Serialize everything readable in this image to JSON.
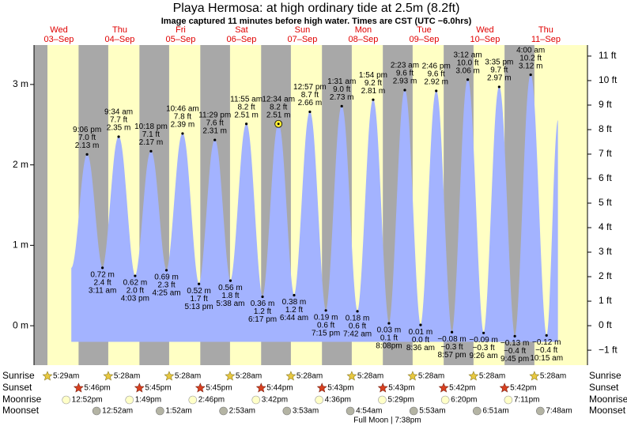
{
  "chart_data": {
    "type": "tide",
    "title": "Playa Hermosa: at high  ordinary tide at 2.5m (8.2ft)",
    "subtitle": "Image captured 11 minutes before high water. Times are CST (UTC −6.0hrs)",
    "days": [
      {
        "name": "Wed",
        "date": "03–Sep"
      },
      {
        "name": "Thu",
        "date": "04–Sep"
      },
      {
        "name": "Fri",
        "date": "05–Sep"
      },
      {
        "name": "Sat",
        "date": "06–Sep"
      },
      {
        "name": "Sun",
        "date": "07–Sep"
      },
      {
        "name": "Mon",
        "date": "08–Sep"
      },
      {
        "name": "Tue",
        "date": "09–Sep"
      },
      {
        "name": "Wed",
        "date": "10–Sep"
      },
      {
        "name": "Thu",
        "date": "11–Sep"
      }
    ],
    "ylim": [
      -0.49,
      3.49
    ],
    "yticks": [
      {
        "value": 0,
        "label": "0 m"
      },
      {
        "value": 1,
        "label": "1 m"
      },
      {
        "value": 2,
        "label": "2 m"
      },
      {
        "value": 3,
        "label": "3 m"
      }
    ],
    "y2lim": [
      -1.61,
      11.45
    ],
    "y2ticks": [
      {
        "value": -1,
        "label": "−1 ft"
      },
      {
        "value": 0,
        "label": "0 ft"
      },
      {
        "value": 1,
        "label": "1 ft"
      },
      {
        "value": 2,
        "label": "2 ft"
      },
      {
        "value": 3,
        "label": "3 ft"
      },
      {
        "value": 4,
        "label": "4 ft"
      },
      {
        "value": 5,
        "label": "5 ft"
      },
      {
        "value": 6,
        "label": "6 ft"
      },
      {
        "value": 7,
        "label": "7 ft"
      },
      {
        "value": 8,
        "label": "8 ft"
      },
      {
        "value": 9,
        "label": "9 ft"
      },
      {
        "value": 10,
        "label": "10 ft"
      },
      {
        "value": 11,
        "label": "11 ft"
      }
    ],
    "day_color": "#ffffc4",
    "night_color": "#a8a8a8",
    "tide_color": "#a3b3ff",
    "header_color": "#e00000",
    "tides": {
      "times": [
        "9:06 pm",
        "3:11 am",
        "9:34 am",
        "4:03 pm",
        "10:18 pm",
        "4:25 am",
        "10:46 am",
        "5:13 pm",
        "11:29 pm",
        "5:38 am",
        "11:55 am",
        "6:17 pm",
        "12:34 am",
        "6:44 am",
        "12:57 pm",
        "7:15 pm",
        "1:31 am",
        "7:42 am",
        "1:54 pm",
        "8:08pm",
        "2:23 am",
        "8:36 am",
        "2:46 pm",
        "8:57 pm",
        "3:12 am",
        "9:26 am",
        "3:35 pm",
        "9:45 pm",
        "4:00 am",
        "10:15 am"
      ],
      "values": [
        2.13,
        0.72,
        2.35,
        0.62,
        2.17,
        0.69,
        2.39,
        0.52,
        2.31,
        0.56,
        2.51,
        0.36,
        2.51,
        0.38,
        2.66,
        0.19,
        2.73,
        0.18,
        2.81,
        0.03,
        2.93,
        0.01,
        2.92,
        -0.08,
        3.06,
        -0.09,
        2.97,
        -0.13,
        3.12,
        -0.12
      ],
      "value_labels": [
        "2.13 m",
        "0.72 m",
        "2.35 m",
        "0.62 m",
        "2.17 m",
        "0.69 m",
        "2.39 m",
        "0.52 m",
        "2.31 m",
        "0.56 m",
        "2.51 m",
        "0.36 m",
        "2.51 m",
        "0.38 m",
        "2.66 m",
        "0.19 m",
        "2.73 m",
        "0.18 m",
        "2.81 m",
        "0.03 m",
        "2.93 m",
        "0.01 m",
        "2.92 m",
        "−0.08 m",
        "3.06 m",
        "−0.09 m",
        "2.97 m",
        "−0.13 m",
        "3.12 m",
        "−0.12 m"
      ],
      "ft_labels": [
        "7.0 ft",
        "2.4 ft",
        "7.7 ft",
        "2.0 ft",
        "7.1 ft",
        "2.3 ft",
        "7.8 ft",
        "1.7 ft",
        "7.6 ft",
        "1.8 ft",
        "8.2 ft",
        "1.2 ft",
        "8.2 ft",
        "1.2 ft",
        "8.7 ft",
        "0.6 ft",
        "9.0 ft",
        "0.6 ft",
        "9.2 ft",
        "0.1 ft",
        "9.6 ft",
        "0.0 ft",
        "9.6 ft",
        "−0.3 ft",
        "10.0 ft",
        "−0.3 ft",
        "9.7 ft",
        "−0.4 ft",
        "10.2 ft",
        "−0.4 ft"
      ]
    },
    "almanac": [
      {
        "name": "Sunrise",
        "times": [
          "5:29am",
          "5:28am",
          "5:28am",
          "5:28am",
          "5:28am",
          "5:28am",
          "5:28am",
          "5:28am",
          "5:28am"
        ]
      },
      {
        "name": "Sunset",
        "times": [
          "5:46pm",
          "5:45pm",
          "5:45pm",
          "5:44pm",
          "5:43pm",
          "5:43pm",
          "5:42pm",
          "5:42pm",
          null
        ]
      },
      {
        "name": "Moonrise",
        "times": [
          "12:52pm",
          "1:49pm",
          "2:46pm",
          "3:42pm",
          "4:36pm",
          "5:29pm",
          "6:20pm",
          "7:11pm",
          null
        ]
      },
      {
        "name": "Moonset",
        "times": [
          null,
          "12:52am",
          "1:52am",
          "2:53am",
          "3:53am",
          "4:54am",
          "5:53am",
          "6:51am",
          "7:48am"
        ]
      }
    ],
    "full_moon": "Full Moon | 7:38pm"
  }
}
